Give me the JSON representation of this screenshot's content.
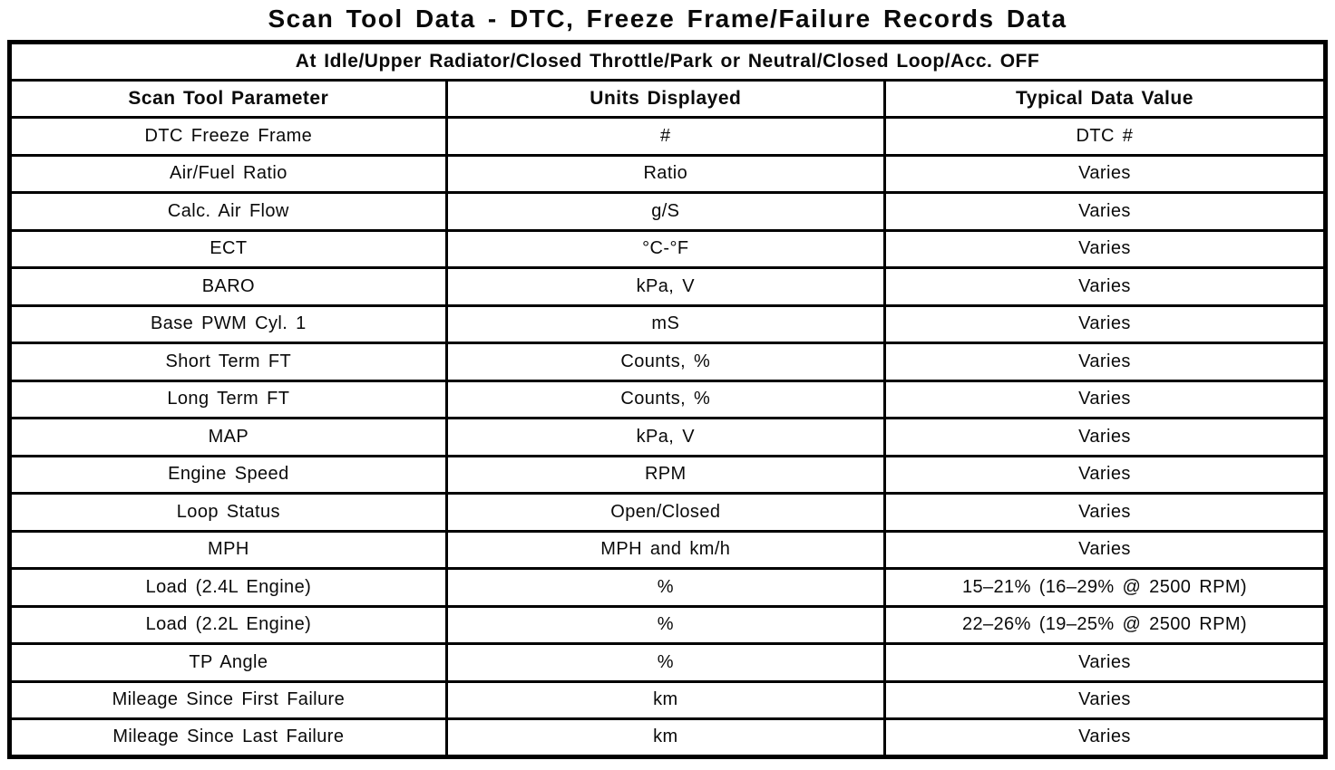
{
  "page_title": "Scan Tool Data - DTC, Freeze Frame/Failure Records Data",
  "table": {
    "condition_header": "At Idle/Upper Radiator/Closed Throttle/Park or Neutral/Closed Loop/Acc. OFF",
    "columns": [
      "Scan Tool Parameter",
      "Units Displayed",
      "Typical Data Value"
    ],
    "rows": [
      [
        "DTC Freeze Frame",
        "#",
        "DTC #"
      ],
      [
        "Air/Fuel Ratio",
        "Ratio",
        "Varies"
      ],
      [
        "Calc. Air Flow",
        "g/S",
        "Varies"
      ],
      [
        "ECT",
        "°C-°F",
        "Varies"
      ],
      [
        "BARO",
        "kPa, V",
        "Varies"
      ],
      [
        "Base PWM Cyl. 1",
        "mS",
        "Varies"
      ],
      [
        "Short Term FT",
        "Counts, %",
        "Varies"
      ],
      [
        "Long Term FT",
        "Counts, %",
        "Varies"
      ],
      [
        "MAP",
        "kPa, V",
        "Varies"
      ],
      [
        "Engine Speed",
        "RPM",
        "Varies"
      ],
      [
        "Loop Status",
        "Open/Closed",
        "Varies"
      ],
      [
        "MPH",
        "MPH and km/h",
        "Varies"
      ],
      [
        "Load (2.4L Engine)",
        "%",
        "15–21% (16–29% @ 2500 RPM)"
      ],
      [
        "Load (2.2L Engine)",
        "%",
        "22–26% (19–25% @ 2500 RPM)"
      ],
      [
        "TP Angle",
        "%",
        "Varies"
      ],
      [
        "Mileage Since First Failure",
        "km",
        "Varies"
      ],
      [
        "Mileage Since Last Failure",
        "km",
        "Varies"
      ]
    ]
  }
}
